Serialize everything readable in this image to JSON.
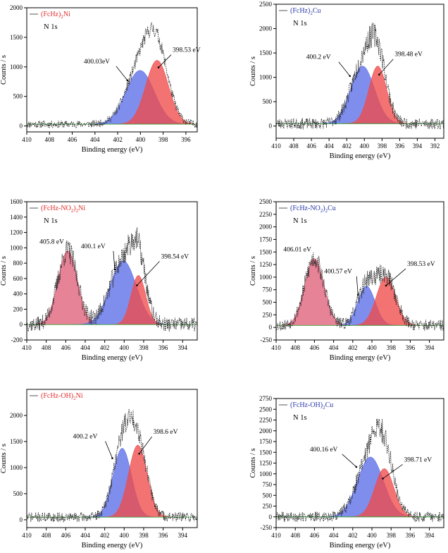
{
  "figure": {
    "description_free": true
  },
  "chart_data": [
    {
      "type": "line",
      "title": "(FcHz)2Ni",
      "legend_main": "(FcHz)",
      "legend_sub": "2",
      "legend_tail": "Ni",
      "legend_color": "#e03030",
      "subtitle": "N 1s",
      "xlabel": "Binding energy (eV)",
      "ylabel": "Counts / s",
      "xlim": [
        410,
        395
      ],
      "ylim": [
        -100,
        2000
      ],
      "xticks": [
        "410",
        "408",
        "406",
        "404",
        "402",
        "400",
        "398",
        "396"
      ],
      "xtick_values": [
        410,
        408,
        406,
        404,
        402,
        400,
        398,
        396
      ],
      "yticks": [
        "0",
        "500",
        "1000",
        "1500",
        "2000"
      ],
      "ytick_values": [
        0,
        500,
        1000,
        1500,
        2000
      ],
      "peaks": [
        {
          "center": 400.03,
          "height": 910,
          "sigma": 1.25,
          "color": "#5b6ee8",
          "label": "400.03eV"
        },
        {
          "center": 398.53,
          "height": 1080,
          "sigma": 1.0,
          "color": "#f04a4a",
          "label": "398.53 eV"
        }
      ],
      "baseline": 30,
      "noise": 60,
      "seed": 11
    },
    {
      "type": "line",
      "title": "(FcHz)2Cu",
      "legend_main": "(FcHz)",
      "legend_sub": "2",
      "legend_tail": "Cu",
      "legend_color": "#2a3aa8",
      "subtitle": "N 1s",
      "xlabel": "Binding energy (eV)",
      "ylabel": "Counts / s",
      "xlim": [
        410,
        391
      ],
      "ylim": [
        -250,
        2500
      ],
      "xticks": [
        "410",
        "408",
        "406",
        "404",
        "402",
        "400",
        "398",
        "396",
        "394",
        "392"
      ],
      "xtick_values": [
        410,
        408,
        406,
        404,
        402,
        400,
        398,
        396,
        394,
        392
      ],
      "yticks": [
        "0",
        "500",
        "1000",
        "1500",
        "2000",
        "2500"
      ],
      "ytick_values": [
        0,
        500,
        1000,
        1500,
        2000,
        2500
      ],
      "peaks": [
        {
          "center": 400.2,
          "height": 1180,
          "sigma": 1.35,
          "color": "#5b6ee8",
          "label": "400.2 eV"
        },
        {
          "center": 398.48,
          "height": 1180,
          "sigma": 1.0,
          "color": "#f04a4a",
          "label": "398.48 eV"
        }
      ],
      "baseline": 50,
      "noise": 110,
      "seed": 23
    },
    {
      "type": "line",
      "title": "(FcHz-NO2)2Ni",
      "legend_main": "(FcHz-NO",
      "legend_sub": "2",
      "legend_tail": ")",
      "legend_sub2": "2",
      "legend_tail2": "Ni",
      "legend_color": "#e03030",
      "subtitle": "N 1s",
      "xlabel": "Binding energy (eV)",
      "ylabel": "Counts / s",
      "xlim": [
        410,
        392.5
      ],
      "ylim": [
        -200,
        1600
      ],
      "xticks": [
        "410",
        "408",
        "406",
        "404",
        "402",
        "400",
        "398",
        "396",
        "394"
      ],
      "xtick_values": [
        410,
        408,
        406,
        404,
        402,
        400,
        398,
        396,
        394
      ],
      "yticks": [
        "-200",
        "0",
        "200",
        "400",
        "600",
        "800",
        "1000",
        "1200",
        "1400",
        "1600"
      ],
      "ytick_values": [
        -200,
        0,
        200,
        400,
        600,
        800,
        1000,
        1200,
        1400,
        1600
      ],
      "peaks": [
        {
          "center": 405.8,
          "height": 960,
          "sigma": 1.0,
          "color": "#e0607a",
          "label": "405.8 eV"
        },
        {
          "center": 400.1,
          "height": 830,
          "sigma": 1.35,
          "color": "#5b6ee8",
          "label": "400.1 eV"
        },
        {
          "center": 398.54,
          "height": 640,
          "sigma": 0.75,
          "color": "#f04a4a",
          "label": "398.54 eV"
        }
      ],
      "baseline": 0,
      "noise": 95,
      "seed": 37
    },
    {
      "type": "line",
      "title": "(FcHz-NO2)2Cu",
      "legend_main": "(FcHz-NO",
      "legend_sub": "2",
      "legend_tail": ")",
      "legend_sub2": "2",
      "legend_tail2": "Cu",
      "legend_color": "#2a3aa8",
      "subtitle": "N 1s",
      "xlabel": "Binding energy (eV)",
      "ylabel": "Counts / s",
      "xlim": [
        410,
        392.5
      ],
      "ylim": [
        -250,
        2500
      ],
      "xticks": [
        "410",
        "408",
        "406",
        "404",
        "402",
        "400",
        "398",
        "396",
        "394"
      ],
      "xtick_values": [
        410,
        408,
        406,
        404,
        402,
        400,
        398,
        396,
        394
      ],
      "yticks": [
        "-250",
        "0",
        "250",
        "500",
        "750",
        "1000",
        "1250",
        "1500",
        "1750",
        "2000",
        "2250",
        "2500"
      ],
      "ytick_values": [
        -250,
        0,
        250,
        500,
        750,
        1000,
        1250,
        1500,
        1750,
        2000,
        2250,
        2500
      ],
      "peaks": [
        {
          "center": 406.01,
          "height": 1330,
          "sigma": 1.0,
          "color": "#e0607a",
          "label": "406.01 eV"
        },
        {
          "center": 400.57,
          "height": 780,
          "sigma": 0.9,
          "color": "#5b6ee8",
          "label": "400.57 eV"
        },
        {
          "center": 398.53,
          "height": 960,
          "sigma": 1.0,
          "color": "#f04a4a",
          "label": "398.53 eV"
        }
      ],
      "baseline": 40,
      "noise": 110,
      "seed": 53
    },
    {
      "type": "line",
      "title": "(FcHz-OH)2Ni",
      "legend_main": "(FcHz-OH)",
      "legend_sub": "2",
      "legend_tail": "Ni",
      "legend_color": "#e03030",
      "subtitle": "",
      "xlabel": "Binding energy (eV)",
      "ylabel": "Counts / s",
      "xlim": [
        410,
        392.5
      ],
      "ylim": [
        -150,
        2500
      ],
      "xticks": [
        "410",
        "408",
        "406",
        "404",
        "402",
        "400",
        "398",
        "396",
        "394"
      ],
      "xtick_values": [
        410,
        408,
        406,
        404,
        402,
        400,
        398,
        396,
        394
      ],
      "yticks": [
        "0",
        "500",
        "1000",
        "1500",
        "2000"
      ],
      "ytick_values": [
        0,
        500,
        1000,
        1500,
        2000
      ],
      "peaks": [
        {
          "center": 400.2,
          "height": 1320,
          "sigma": 0.95,
          "color": "#5b6ee8",
          "label": "400.2 eV"
        },
        {
          "center": 398.6,
          "height": 1380,
          "sigma": 0.95,
          "color": "#f04a4a",
          "label": "398.6 eV"
        }
      ],
      "baseline": 50,
      "noise": 90,
      "seed": 71
    },
    {
      "type": "line",
      "title": "(FcHz-OH)2Cu",
      "legend_main": "(FcHz-OH)",
      "legend_sub": "2",
      "legend_tail": "Cu",
      "legend_color": "#2a3aa8",
      "subtitle": "N 1s",
      "xlabel": "Binding energy (eV)",
      "ylabel": "Counts / s",
      "xlim": [
        410,
        392.5
      ],
      "ylim": [
        -250,
        2750
      ],
      "xticks": [
        "410",
        "408",
        "406",
        "404",
        "402",
        "400",
        "398",
        "396",
        "394"
      ],
      "xtick_values": [
        410,
        408,
        406,
        404,
        402,
        400,
        398,
        396,
        394
      ],
      "yticks": [
        "-250",
        "0",
        "250",
        "500",
        "750",
        "1000",
        "1250",
        "1500",
        "1750",
        "2000",
        "2250",
        "2500",
        "2750"
      ],
      "ytick_values": [
        -250,
        0,
        250,
        500,
        750,
        1000,
        1250,
        1500,
        1750,
        2000,
        2250,
        2500,
        2750
      ],
      "peaks": [
        {
          "center": 400.16,
          "height": 1390,
          "sigma": 1.35,
          "color": "#5b6ee8",
          "label": "400.16 eV"
        },
        {
          "center": 398.71,
          "height": 1120,
          "sigma": 1.0,
          "color": "#f04a4a",
          "label": "398.71 eV"
        }
      ],
      "baseline": 0,
      "noise": 120,
      "seed": 89
    }
  ]
}
